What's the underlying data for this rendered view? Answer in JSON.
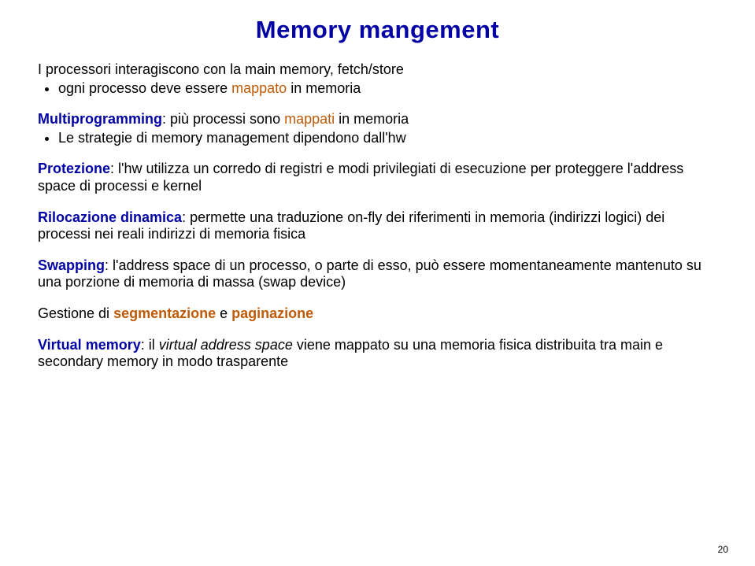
{
  "colors": {
    "title": "#0101a6",
    "lead_text": "#000000",
    "sub_text": "#000000",
    "keyword": "#0101a6",
    "mappato": "#bf5a06",
    "highlight_terms": "#bf5a06",
    "pagenum": "#000000",
    "background": "#ffffff"
  },
  "typography": {
    "title_size": 31,
    "body_size": 18,
    "pagenum_size": 12,
    "line_height": 1.2
  },
  "title": "Memory mangement",
  "blocks": [
    {
      "lead_plain": "I processori interagiscono con la main memory, fetch/store",
      "subs": [
        {
          "pre": "ogni processo deve essere ",
          "hl": "mappato",
          "hl_color": "highlight_terms",
          "post": " in memoria"
        }
      ]
    },
    {
      "lead_kw": "Multiprogramming",
      "lead_rest": ": più processi sono ",
      "lead_hl": "mappati",
      "lead_hl_color": "highlight_terms",
      "lead_tail": " in memoria",
      "subs": [
        {
          "plain": "Le strategie di memory management dipendono dall'hw"
        }
      ]
    },
    {
      "lead_kw": "Protezione",
      "lead_rest": ": l'hw utilizza un corredo di registri e modi privilegiati di esecuzione per proteggere l'address space di processi e kernel",
      "subs": []
    },
    {
      "lead_kw": "Rilocazione dinamica",
      "lead_rest": ": permette una traduzione on-fly dei riferimenti in memoria (indirizzi logici) dei processi nei reali indirizzi di memoria fisica",
      "subs": []
    },
    {
      "lead_kw": "Swapping",
      "lead_rest": ": l'address space di un processo, o parte di esso, può essere momentaneamente mantenuto su una porzione di memoria di massa (swap device)",
      "subs": []
    },
    {
      "lead_plain_pre": "Gestione di ",
      "lead_bold_a": "segmentazione",
      "lead_plain_mid": " e ",
      "lead_bold_b": "paginazione",
      "subs": []
    },
    {
      "lead_kw": "Virtual memory",
      "lead_rest": ": il ",
      "lead_ital": "virtual address space",
      "lead_tail2": " viene mappato su una memoria fisica distribuita tra main e secondary memory in modo trasparente",
      "subs": []
    }
  ],
  "page_number": "20"
}
